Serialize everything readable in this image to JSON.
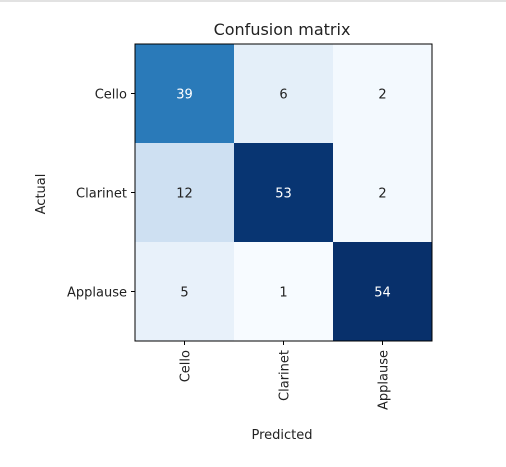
{
  "chart_data": {
    "type": "heatmap",
    "title": "Confusion matrix",
    "xlabel": "Predicted",
    "ylabel": "Actual",
    "row_labels": [
      "Cello",
      "Clarinet",
      "Applause"
    ],
    "col_labels": [
      "Cello",
      "Clarinet",
      "Applause"
    ],
    "values": [
      [
        39,
        6,
        2
      ],
      [
        12,
        53,
        2
      ],
      [
        5,
        1,
        54
      ]
    ],
    "colormap": "Blues",
    "color_range": [
      1,
      54
    ],
    "grid": false
  }
}
